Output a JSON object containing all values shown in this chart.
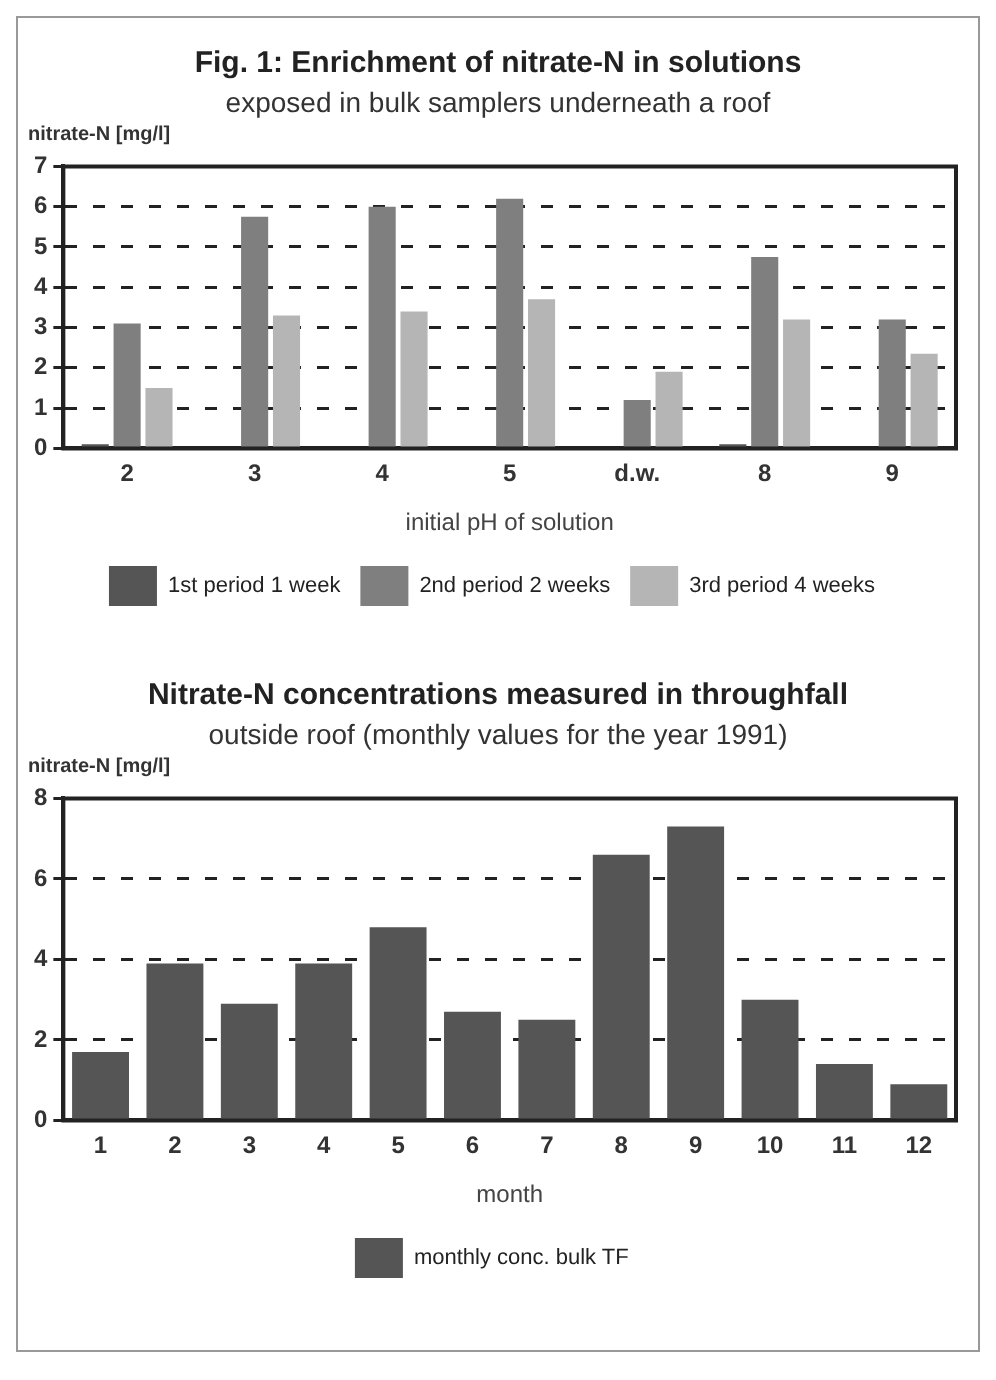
{
  "chart_data": [
    {
      "type": "bar",
      "title": "Fig. 1: Enrichment of nitrate-N in solutions",
      "subtitle": "exposed in bulk samplers underneath a roof",
      "ylabel": "nitrate-N [mg/l]",
      "xlabel": "initial pH of solution",
      "categories": [
        "2",
        "3",
        "4",
        "5",
        "d.w.",
        "8",
        "9"
      ],
      "series": [
        {
          "name": "1st period 1 week",
          "color": "#555555",
          "values": [
            0.1,
            0,
            0,
            0,
            0,
            0.1,
            0
          ]
        },
        {
          "name": "2nd period 2 weeks",
          "color": "#7f7f7f",
          "values": [
            3.1,
            5.75,
            6.0,
            6.2,
            1.2,
            4.75,
            3.2
          ]
        },
        {
          "name": "3rd period 4 weeks",
          "color": "#b5b5b5",
          "values": [
            1.5,
            3.3,
            3.4,
            3.7,
            1.9,
            3.2,
            2.35
          ]
        }
      ],
      "ylim": [
        0,
        7
      ],
      "yticks": [
        0,
        1,
        2,
        3,
        4,
        5,
        6,
        7
      ],
      "grid": "y",
      "legend": "bottom"
    },
    {
      "type": "bar",
      "title": "Nitrate-N concentrations measured in throughfall",
      "subtitle": "outside roof (monthly values for the year 1991)",
      "ylabel": "nitrate-N [mg/l]",
      "xlabel": "month",
      "categories": [
        "1",
        "2",
        "3",
        "4",
        "5",
        "6",
        "7",
        "8",
        "9",
        "10",
        "11",
        "12"
      ],
      "series": [
        {
          "name": "monthly conc. bulk TF",
          "color": "#555555",
          "values": [
            1.7,
            3.9,
            2.9,
            3.9,
            4.8,
            2.7,
            2.5,
            6.6,
            7.3,
            3.0,
            1.4,
            0.9
          ]
        }
      ],
      "ylim": [
        0,
        8
      ],
      "yticks": [
        0,
        2,
        4,
        6,
        8
      ],
      "grid": "y",
      "legend": "bottom"
    }
  ]
}
